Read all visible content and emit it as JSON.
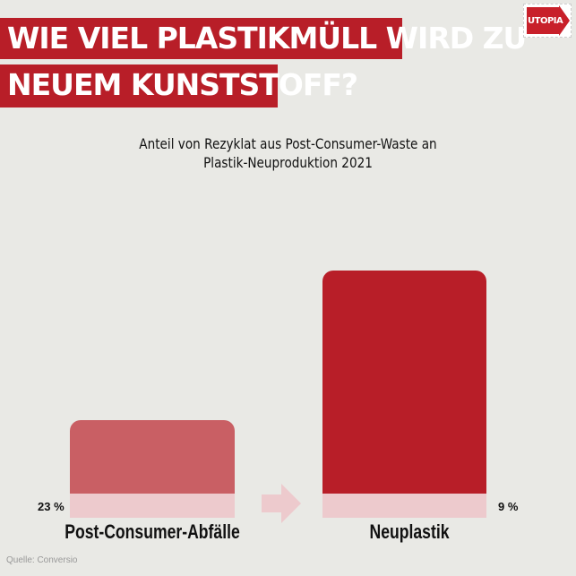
{
  "header": {
    "title_line1": "WIE VIEL PLASTIKMÜLL WIRD ZU",
    "title_line2": "NEUEM KUNSTSTOFF?",
    "logo_text": "UTOPIA"
  },
  "chart_data": {
    "type": "bar",
    "title": "Anteil von Rezyklat aus Post-Consumer-Waste an Plastik-Neuproduktion 2021",
    "title_line1": "Anteil von Rezyklat aus Post-Consumer-Waste an",
    "title_line2": "Plastik-Neuproduktion 2021",
    "categories": [
      "Post-Consumer-Abfälle",
      "Neuplastik"
    ],
    "values": [
      23,
      9
    ],
    "value_labels": [
      "23 %",
      "9 %"
    ],
    "unit": "%",
    "colors": {
      "left_bar": "#c95f64",
      "right_bar": "#b81e28",
      "recycled_share": "#edcacd"
    }
  },
  "footer": {
    "source": "Quelle: Conversio"
  }
}
